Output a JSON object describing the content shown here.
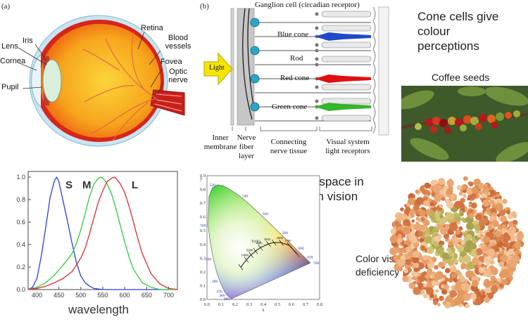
{
  "eye_diagram": {
    "panel": "(a)",
    "labels": {
      "lens": "Lens",
      "iris": "Iris",
      "cornea": "Cornea",
      "pupil": "Pupil",
      "retina": "Retina",
      "blood_vessels": "Blood vessels",
      "fovea": "Fovea",
      "optic_nerve": "Optic nerve"
    }
  },
  "retina_diagram": {
    "panel": "(b)",
    "light": "Light",
    "ganglion": "Ganglion cell (circadian receptor)",
    "blue_cone": "Blue cone",
    "rod": "Rod",
    "red_cone": "Red cone",
    "green_cone": "Green cone",
    "inner_membrane": "Inner membrane",
    "nerve_fiber_layer": "Nerve fiber layer",
    "connecting_tissue": "Connecting nerve tissue",
    "visual_receptors": "Visual system light receptors",
    "colors": {
      "blue": "#1f49c8",
      "red": "#e01010",
      "green": "#34b52c",
      "ganglion": "#2aa6c9",
      "light": "#f5e600"
    }
  },
  "captions": {
    "cone_cells": "Cone cells give colour perceptions",
    "coffee": "Coffee seeds",
    "color_space": "Color space in human vision",
    "deficiency": "Color vision deficiency"
  },
  "chart_data": [
    {
      "type": "line",
      "xlabel": "wavelength",
      "xlim": [
        380,
        720
      ],
      "ylim": [
        0,
        1.05
      ],
      "xticks": [
        400,
        450,
        500,
        550,
        600,
        650,
        700
      ],
      "yticks": [
        0.0,
        0.2,
        0.4,
        0.6,
        0.8,
        1.0
      ],
      "series": [
        {
          "name": "S",
          "color": "#2a3fe0",
          "x": [
            380,
            390,
            400,
            410,
            420,
            430,
            440,
            445,
            450,
            460,
            470,
            480,
            490,
            500,
            510,
            520,
            530,
            550,
            600,
            700
          ],
          "y": [
            0.0,
            0.02,
            0.1,
            0.3,
            0.55,
            0.82,
            0.97,
            1.0,
            0.96,
            0.78,
            0.6,
            0.41,
            0.24,
            0.12,
            0.06,
            0.03,
            0.01,
            0.0,
            0.0,
            0.0
          ]
        },
        {
          "name": "M",
          "color": "#2ecc3c",
          "x": [
            380,
            400,
            420,
            440,
            460,
            480,
            490,
            500,
            510,
            520,
            530,
            540,
            545,
            550,
            560,
            570,
            580,
            590,
            600,
            610,
            620,
            640,
            660,
            680,
            720
          ],
          "y": [
            0.0,
            0.02,
            0.06,
            0.13,
            0.22,
            0.32,
            0.41,
            0.53,
            0.68,
            0.83,
            0.94,
            0.99,
            1.0,
            0.99,
            0.94,
            0.85,
            0.72,
            0.57,
            0.42,
            0.29,
            0.18,
            0.06,
            0.02,
            0.0,
            0.0
          ]
        },
        {
          "name": "L",
          "color": "#e02a2a",
          "x": [
            380,
            400,
            420,
            440,
            460,
            480,
            500,
            510,
            520,
            530,
            540,
            550,
            560,
            570,
            575,
            580,
            590,
            600,
            610,
            620,
            630,
            640,
            660,
            680,
            700,
            720
          ],
          "y": [
            0.0,
            0.01,
            0.03,
            0.06,
            0.1,
            0.16,
            0.28,
            0.37,
            0.5,
            0.64,
            0.78,
            0.88,
            0.96,
            0.99,
            1.0,
            0.99,
            0.94,
            0.86,
            0.74,
            0.6,
            0.45,
            0.32,
            0.14,
            0.05,
            0.01,
            0.0
          ]
        }
      ]
    },
    {
      "type": "scatter",
      "xlabel": "x",
      "ylabel": "y",
      "xlim": [
        0,
        0.8
      ],
      "ylim": [
        0,
        0.9
      ],
      "xticks": [
        0.0,
        0.1,
        0.2,
        0.3,
        0.4,
        0.5,
        0.6,
        0.7,
        0.8
      ],
      "yticks": [
        0.0,
        0.1,
        0.2,
        0.3,
        0.4,
        0.5,
        0.6,
        0.7,
        0.8,
        0.9
      ],
      "locus": [
        {
          "x": 0.1741,
          "y": 0.005
        },
        {
          "x": 0.1666,
          "y": 0.0089
        },
        {
          "x": 0.144,
          "y": 0.0297
        },
        {
          "x": 0.1241,
          "y": 0.0578
        },
        {
          "x": 0.0913,
          "y": 0.1327
        },
        {
          "x": 0.0687,
          "y": 0.2007
        },
        {
          "x": 0.0454,
          "y": 0.295
        },
        {
          "x": 0.0235,
          "y": 0.4127
        },
        {
          "x": 0.0082,
          "y": 0.5384
        },
        {
          "x": 0.0139,
          "y": 0.7502
        },
        {
          "x": 0.0389,
          "y": 0.812
        },
        {
          "x": 0.0743,
          "y": 0.8338
        },
        {
          "x": 0.1142,
          "y": 0.8262
        },
        {
          "x": 0.1547,
          "y": 0.8059
        },
        {
          "x": 0.2296,
          "y": 0.7543
        },
        {
          "x": 0.3016,
          "y": 0.6923
        },
        {
          "x": 0.3731,
          "y": 0.6245
        },
        {
          "x": 0.4441,
          "y": 0.5547
        },
        {
          "x": 0.5125,
          "y": 0.4866
        },
        {
          "x": 0.5752,
          "y": 0.4242
        },
        {
          "x": 0.627,
          "y": 0.3725
        },
        {
          "x": 0.6658,
          "y": 0.334
        },
        {
          "x": 0.6915,
          "y": 0.3083
        },
        {
          "x": 0.7347,
          "y": 0.2653
        }
      ],
      "wavelength_labels": [
        {
          "text": "380",
          "x": 0.1741,
          "y": 0.005
        },
        {
          "text": "460",
          "x": 0.144,
          "y": 0.0297
        },
        {
          "text": "470",
          "x": 0.1241,
          "y": 0.0578
        },
        {
          "text": "480",
          "x": 0.0913,
          "y": 0.1327
        },
        {
          "text": "490",
          "x": 0.0454,
          "y": 0.295
        },
        {
          "text": "500",
          "x": 0.0082,
          "y": 0.5384
        },
        {
          "text": "520",
          "x": 0.0743,
          "y": 0.8338
        },
        {
          "text": "540",
          "x": 0.2296,
          "y": 0.7543
        },
        {
          "text": "560",
          "x": 0.3731,
          "y": 0.6245
        },
        {
          "text": "580",
          "x": 0.5125,
          "y": 0.4866
        },
        {
          "text": "600",
          "x": 0.627,
          "y": 0.3725
        },
        {
          "text": "620",
          "x": 0.6915,
          "y": 0.3083
        },
        {
          "text": "700",
          "x": 0.7347,
          "y": 0.2653
        }
      ],
      "planckian": [
        {
          "x": 0.64,
          "y": 0.33
        },
        {
          "x": 0.585,
          "y": 0.393
        },
        {
          "x": 0.527,
          "y": 0.413
        },
        {
          "x": 0.476,
          "y": 0.414
        },
        {
          "x": 0.437,
          "y": 0.404
        },
        {
          "x": 0.38,
          "y": 0.377
        },
        {
          "x": 0.345,
          "y": 0.352
        },
        {
          "x": 0.313,
          "y": 0.324
        },
        {
          "x": 0.28,
          "y": 0.288
        },
        {
          "x": 0.24,
          "y": 0.234
        }
      ],
      "planckian_label": "Tc(K)",
      "temperatures": [
        {
          "text": "1500",
          "x": 0.585,
          "y": 0.393
        },
        {
          "text": "2000",
          "x": 0.527,
          "y": 0.413
        },
        {
          "text": "3000",
          "x": 0.437,
          "y": 0.404
        },
        {
          "text": "4000",
          "x": 0.38,
          "y": 0.377
        },
        {
          "text": "6000",
          "x": 0.313,
          "y": 0.324
        },
        {
          "text": "10000",
          "x": 0.28,
          "y": 0.288
        }
      ]
    }
  ]
}
